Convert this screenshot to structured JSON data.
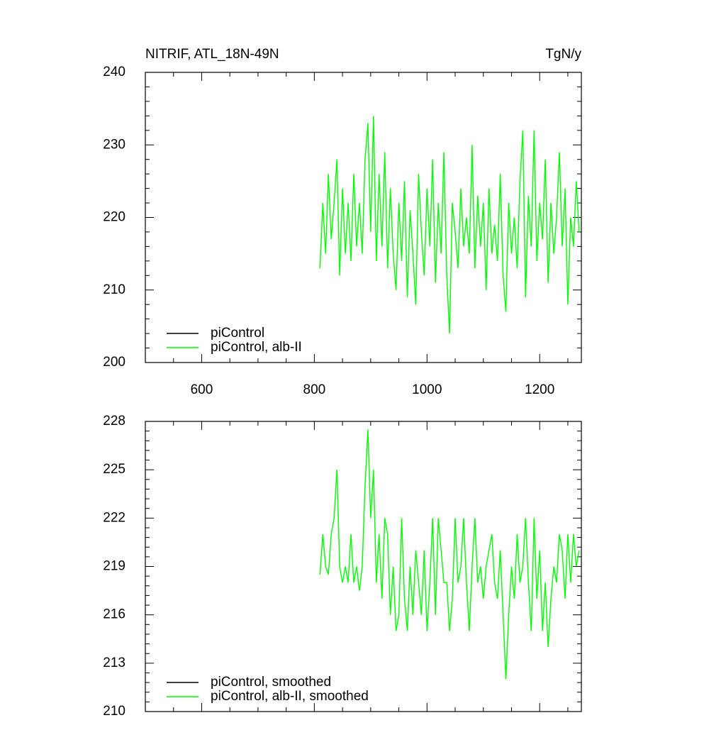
{
  "chart_data": [
    {
      "type": "line",
      "title": "NITRIF, ATL_18N-49N",
      "units": "TgN/y",
      "x": [
        810,
        815,
        820,
        825,
        830,
        835,
        840,
        845,
        850,
        855,
        860,
        865,
        870,
        875,
        880,
        885,
        890,
        895,
        900,
        905,
        910,
        915,
        920,
        925,
        930,
        935,
        940,
        945,
        950,
        955,
        960,
        965,
        970,
        975,
        980,
        985,
        990,
        995,
        1000,
        1005,
        1010,
        1015,
        1020,
        1025,
        1030,
        1035,
        1040,
        1045,
        1050,
        1055,
        1060,
        1065,
        1070,
        1075,
        1080,
        1085,
        1090,
        1095,
        1100,
        1105,
        1110,
        1115,
        1120,
        1125,
        1130,
        1135,
        1140,
        1145,
        1150,
        1155,
        1160,
        1165,
        1170,
        1175,
        1180,
        1185,
        1190,
        1195,
        1200,
        1205,
        1210,
        1215,
        1220,
        1225,
        1230,
        1235,
        1240,
        1245,
        1250,
        1255,
        1260,
        1265,
        1270
      ],
      "series": [
        {
          "name": "piControl",
          "color": "#000000"
        },
        {
          "name": "piControl, alb-II",
          "color": "#00ff00",
          "values": [
            213,
            222,
            215,
            226,
            217,
            222,
            228,
            212,
            224,
            215,
            222,
            214,
            226,
            216,
            222,
            215,
            228,
            233,
            218,
            234,
            214,
            226,
            216,
            229,
            213,
            224,
            215,
            210,
            222,
            214,
            225,
            209,
            221,
            215,
            208,
            226,
            218,
            212,
            224,
            216,
            228,
            211,
            222,
            215,
            229,
            212,
            204,
            222,
            218,
            213,
            224,
            216,
            220,
            215,
            230,
            213,
            223,
            216,
            222,
            210,
            224,
            215,
            219,
            214,
            226,
            212,
            207,
            222,
            215,
            220,
            213,
            225,
            232,
            209,
            223,
            216,
            232,
            214,
            222,
            217,
            228,
            211,
            222,
            215,
            220,
            229,
            216,
            224,
            208,
            220,
            216,
            225,
            218
          ]
        }
      ],
      "xlim": [
        500,
        1274
      ],
      "xticks": [
        600,
        800,
        1000,
        1200
      ],
      "ylim": [
        200,
        240
      ],
      "yticks": [
        200,
        210,
        220,
        230,
        240
      ]
    },
    {
      "type": "line",
      "x": [
        810,
        815,
        820,
        825,
        830,
        835,
        840,
        845,
        850,
        855,
        860,
        865,
        870,
        875,
        880,
        885,
        890,
        895,
        900,
        905,
        910,
        915,
        920,
        925,
        930,
        935,
        940,
        945,
        950,
        955,
        960,
        965,
        970,
        975,
        980,
        985,
        990,
        995,
        1000,
        1005,
        1010,
        1015,
        1020,
        1025,
        1030,
        1035,
        1040,
        1045,
        1050,
        1055,
        1060,
        1065,
        1070,
        1075,
        1080,
        1085,
        1090,
        1095,
        1100,
        1105,
        1110,
        1115,
        1120,
        1125,
        1130,
        1135,
        1140,
        1145,
        1150,
        1155,
        1160,
        1165,
        1170,
        1175,
        1180,
        1185,
        1190,
        1195,
        1200,
        1205,
        1210,
        1215,
        1220,
        1225,
        1230,
        1235,
        1240,
        1245,
        1250,
        1255,
        1260,
        1265,
        1270
      ],
      "series": [
        {
          "name": "piControl, smoothed",
          "color": "#000000"
        },
        {
          "name": "piControl, alb-II, smoothed",
          "color": "#00ff00",
          "values": [
            218.5,
            221,
            219,
            218.5,
            221,
            222,
            225,
            219,
            218,
            219,
            218,
            221,
            218,
            219,
            217.5,
            219,
            224,
            227.5,
            222,
            225,
            218,
            221,
            217,
            222,
            221,
            216,
            219,
            215,
            216,
            222,
            217,
            215,
            219,
            216,
            220,
            218,
            216,
            220,
            215,
            218,
            222,
            216,
            222,
            220,
            218,
            218,
            215,
            217,
            222,
            218,
            219,
            222,
            218,
            215,
            219,
            222,
            218,
            219,
            217,
            219,
            220,
            221,
            218,
            217,
            220,
            216,
            212,
            216,
            219,
            217,
            221,
            218,
            219,
            222,
            218,
            215,
            222,
            217,
            220,
            215,
            218,
            214,
            217,
            219,
            218,
            221,
            220,
            217,
            221,
            218,
            221,
            219,
            220
          ]
        }
      ],
      "xlim": [
        500,
        1274
      ],
      "xticks": [
        600,
        800,
        1000,
        1200
      ],
      "ylim": [
        210,
        228
      ],
      "yticks": [
        210,
        213,
        216,
        219,
        222,
        225,
        228
      ]
    }
  ]
}
